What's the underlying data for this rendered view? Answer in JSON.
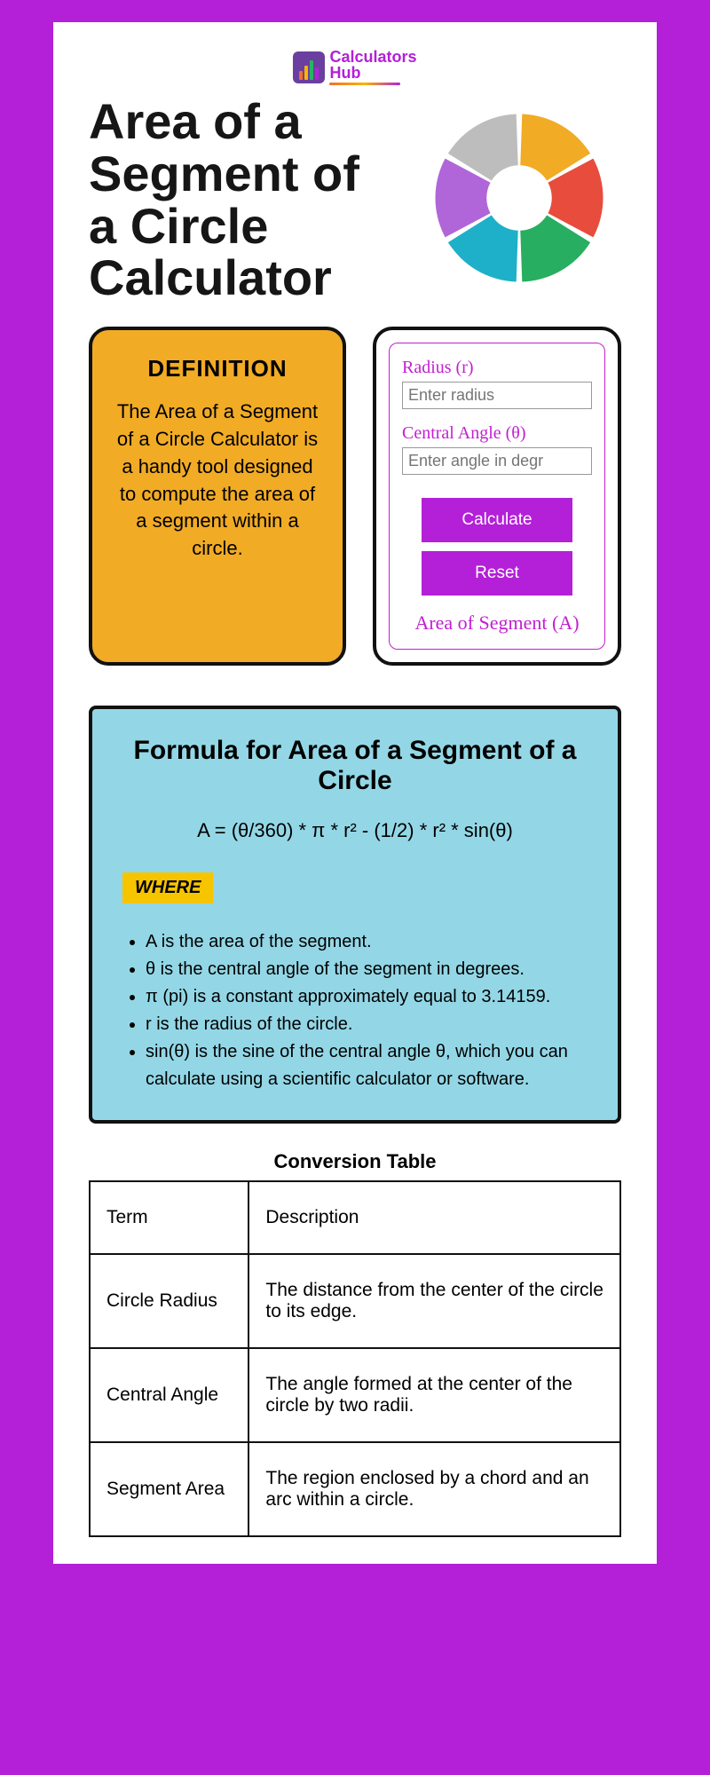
{
  "logo": {
    "line1": "Calculators",
    "line2": "Hub"
  },
  "title": "Area of a Segment of a Circle Calculator",
  "donut": {
    "colors": [
      "#f1ab25",
      "#e74c3c",
      "#27ae60",
      "#1fb0c9",
      "#b066d8",
      "#bdbdbd"
    ],
    "inner_r": 35,
    "outer_r": 90
  },
  "definition": {
    "heading": "DEFINITION",
    "text": "The Area of a Segment of a Circle Calculator is a handy tool designed to compute the area of a segment within a circle."
  },
  "calc": {
    "radius_label": "Radius (r)",
    "radius_placeholder": "Enter radius",
    "angle_label": "Central Angle (θ)",
    "angle_placeholder": "Enter angle in degr",
    "btn_calc": "Calculate",
    "btn_reset": "Reset",
    "result_label": "Area of Segment (A)"
  },
  "formula": {
    "title": "Formula for Area of a Segment of a Circle",
    "equation": "A = (θ/360) * π * r² - (1/2) * r² * sin(θ)",
    "where": "WHERE",
    "items": [
      "A is the area of the segment.",
      "θ is the central angle of the segment in degrees.",
      "π (pi) is a constant approximately equal to 3.14159.",
      "r is the radius of the circle.",
      "sin(θ) is the sine of the central angle θ, which you can calculate using a scientific calculator or software."
    ]
  },
  "table": {
    "title": "Conversion Table",
    "header": [
      "Term",
      "Description"
    ],
    "rows": [
      [
        "Circle Radius",
        "The distance from the center of the circle to its edge."
      ],
      [
        "Central Angle",
        "The angle formed at the center of the circle by two radii."
      ],
      [
        "Segment Area",
        "The region enclosed by a chord and an arc within a circle."
      ]
    ]
  }
}
